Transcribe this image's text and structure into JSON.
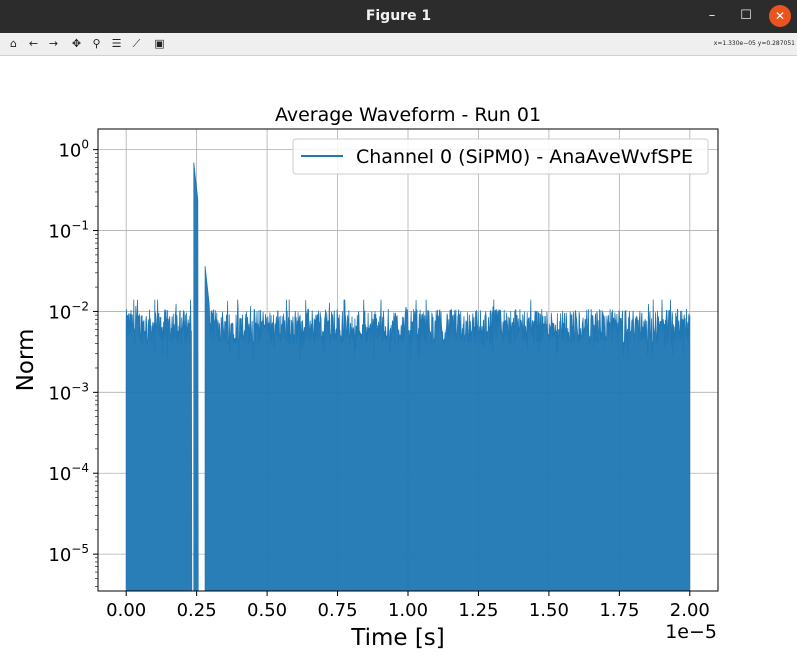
{
  "window": {
    "title": "Figure 1"
  },
  "window_controls": {
    "minimize": "–",
    "maximize": "☐",
    "close": "✕"
  },
  "toolbar": {
    "icons": [
      {
        "name": "home-icon",
        "glyph": "⌂"
      },
      {
        "name": "back-icon",
        "glyph": "←"
      },
      {
        "name": "forward-icon",
        "glyph": "→"
      },
      {
        "name": "pan-icon",
        "glyph": "✥"
      },
      {
        "name": "zoom-icon",
        "glyph": "⚲"
      },
      {
        "name": "subplots-icon",
        "glyph": "☰"
      },
      {
        "name": "edit-curves-icon",
        "glyph": "⟋"
      },
      {
        "name": "save-icon",
        "glyph": "▣"
      }
    ],
    "coords": "x=1.330e−05  y=0.287051"
  },
  "chart_data": {
    "type": "line",
    "title": "Average Waveform - Run 01",
    "xlabel": "Time [s]",
    "ylabel": "Norm",
    "x_offset_label": "1e−5",
    "xscale": "linear",
    "yscale": "log",
    "xlim": [
      -1e-06,
      2.1e-05
    ],
    "ylim": [
      3.5e-06,
      1.8
    ],
    "xticks": [
      0,
      2.5e-06,
      5e-06,
      7.5e-06,
      1e-05,
      1.25e-05,
      1.5e-05,
      1.75e-05,
      2e-05
    ],
    "xtick_labels": [
      "0.00",
      "0.25",
      "0.50",
      "0.75",
      "1.00",
      "1.25",
      "1.50",
      "1.75",
      "2.00"
    ],
    "yticks": [
      {
        "base": "10",
        "exp": "0",
        "value": 1
      },
      {
        "base": "10",
        "exp": "−1",
        "value": 0.1
      },
      {
        "base": "10",
        "exp": "−2",
        "value": 0.01
      },
      {
        "base": "10",
        "exp": "−3",
        "value": 0.001
      },
      {
        "base": "10",
        "exp": "−4",
        "value": 0.0001
      },
      {
        "base": "10",
        "exp": "−5",
        "value": 1e-05
      }
    ],
    "grid": true,
    "legend_position": "upper right",
    "series": [
      {
        "name": "Channel 0 (SiPM0) - AnaAveWvfSPE",
        "color": "#1f77b4",
        "x_start": 0.0,
        "x_end": 2e-05,
        "noise_floor_typical": 0.0065,
        "noise_floor_min": 0.0025,
        "noise_floor_max": 0.014,
        "peak": {
          "x": 2.35e-06,
          "y": 1.0
        },
        "gaps": [
          [
            2.32e-06,
            2.4e-06
          ],
          [
            2.55e-06,
            2.8e-06
          ]
        ],
        "decay_end": {
          "x": 2.95e-06,
          "y": 0.012
        }
      }
    ]
  }
}
